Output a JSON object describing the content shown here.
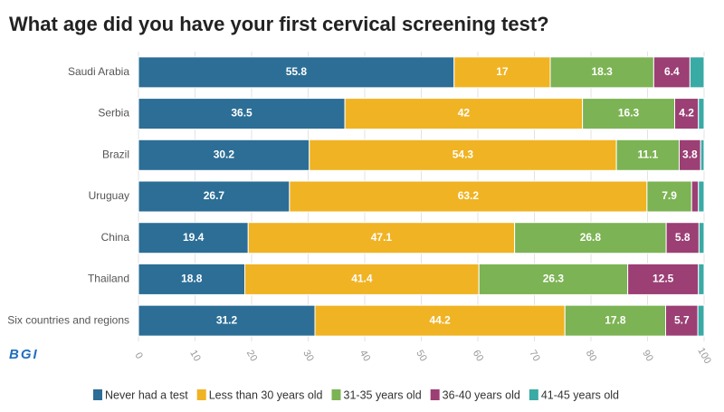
{
  "chart_data": {
    "type": "stacked-bar-horizontal",
    "title": "What age did you have your first cervical screening test?",
    "categories": [
      "Saudi Arabia",
      "Serbia",
      "Brazil",
      "Uruguay",
      "China",
      "Thailand",
      "Six countries and regions"
    ],
    "series": [
      {
        "name": "Never had a test",
        "color": "#2c6e96",
        "values": [
          55.8,
          36.5,
          30.2,
          26.7,
          19.4,
          18.8,
          31.2
        ]
      },
      {
        "name": "Less than 30 years old",
        "color": "#f0b323",
        "values": [
          17,
          42,
          54.3,
          63.2,
          47.1,
          41.4,
          44.2
        ]
      },
      {
        "name": "31-35 years old",
        "color": "#7cb354",
        "values": [
          18.3,
          16.3,
          11.1,
          7.9,
          26.8,
          26.3,
          17.8
        ]
      },
      {
        "name": "36-40 years old",
        "color": "#9b3f74",
        "values": [
          6.4,
          4.2,
          3.8,
          1.2,
          5.8,
          12.5,
          5.7
        ]
      },
      {
        "name": "41-45 years old",
        "color": "#3aaaa5",
        "values": [
          2.5,
          1,
          0.6,
          1,
          0.9,
          1,
          1.1
        ]
      }
    ],
    "xlim": [
      0,
      100
    ],
    "xticks": [
      0,
      10,
      20,
      30,
      40,
      50,
      60,
      70,
      80,
      90,
      100
    ],
    "grid": true
  },
  "logo": "BGI"
}
